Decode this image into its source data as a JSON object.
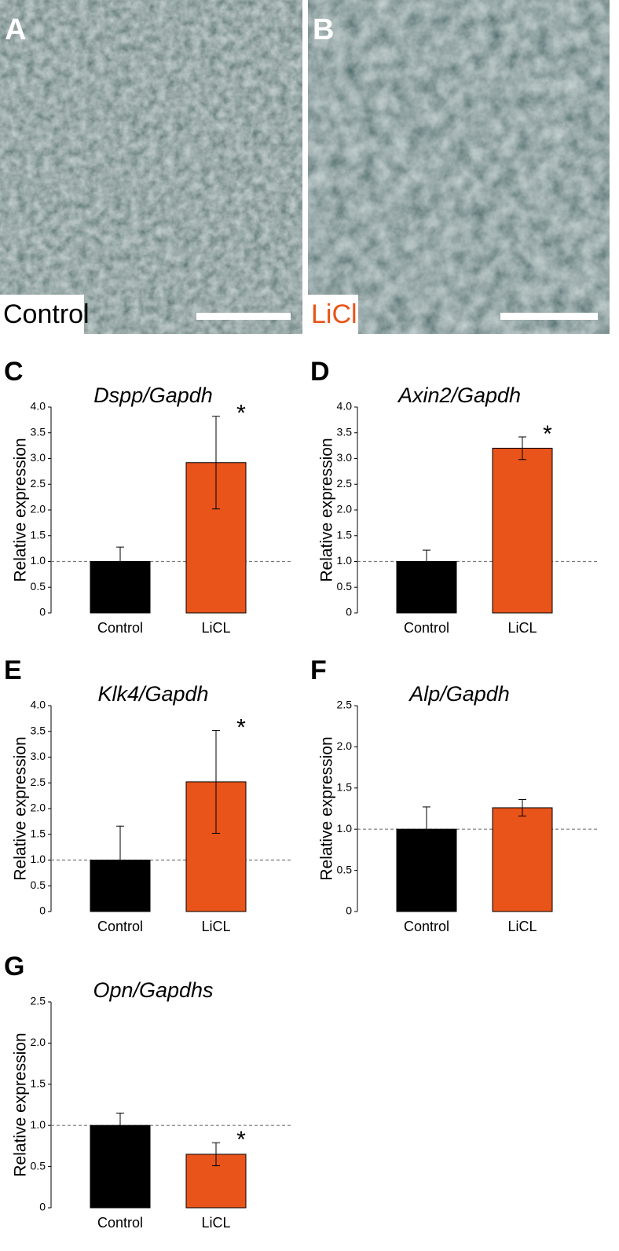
{
  "images": [
    {
      "label": "A",
      "caption": "Control",
      "caption_color": "#000000"
    },
    {
      "label": "B",
      "caption": "LiCl",
      "caption_color": "#e8541a"
    }
  ],
  "chart_data": [
    {
      "type": "bar",
      "panel": "C",
      "title": "Dspp/Gapdh",
      "y_label": "Relative expression",
      "categories": [
        "Control",
        "LiCL"
      ],
      "values": [
        1.0,
        2.92
      ],
      "errors": [
        0.28,
        0.9
      ],
      "colors": [
        "#000000",
        "#e8541a"
      ],
      "significance": [
        null,
        "*"
      ],
      "reference_line": 1,
      "ylim": [
        0,
        4
      ],
      "yticks": [
        0,
        {
          "value": 0.5,
          "label": "0.5"
        },
        {
          "value": 1,
          "label": "1.0"
        },
        {
          "value": 1.5,
          "label": "1.5"
        },
        {
          "value": 2,
          "label": "2.0"
        },
        {
          "value": 2.5,
          "label": "2.5"
        },
        {
          "value": 3,
          "label": "3.0"
        },
        {
          "value": 3.5,
          "label": "3.5"
        },
        {
          "value": 4,
          "label": "4.0"
        }
      ]
    },
    {
      "type": "bar",
      "panel": "D",
      "title": "Axin2/Gapdh",
      "y_label": "Relative expression",
      "categories": [
        "Control",
        "LiCL"
      ],
      "values": [
        1.0,
        3.2
      ],
      "errors": [
        0.22,
        0.22
      ],
      "colors": [
        "#000000",
        "#e8541a"
      ],
      "significance": [
        null,
        "*"
      ],
      "reference_line": 1,
      "ylim": [
        0,
        4
      ],
      "yticks": [
        0,
        {
          "value": 0.5,
          "label": "0.5"
        },
        {
          "value": 1,
          "label": "1.0"
        },
        {
          "value": 1.5,
          "label": "1.5"
        },
        {
          "value": 2,
          "label": "2.0"
        },
        {
          "value": 2.5,
          "label": "2.5"
        },
        {
          "value": 3,
          "label": "3.0"
        },
        {
          "value": 3.5,
          "label": "3.5"
        },
        {
          "value": 4,
          "label": "4.0"
        }
      ]
    },
    {
      "type": "bar",
      "panel": "E",
      "title": "Klk4/Gapdh",
      "y_label": "Relative expression",
      "categories": [
        "Control",
        "LiCL"
      ],
      "values": [
        1.0,
        2.52
      ],
      "errors": [
        0.66,
        1.0
      ],
      "colors": [
        "#000000",
        "#e8541a"
      ],
      "significance": [
        null,
        "*"
      ],
      "reference_line": 1,
      "ylim": [
        0,
        4
      ],
      "yticks": [
        0,
        {
          "value": 0.5,
          "label": "0.5"
        },
        {
          "value": 1,
          "label": "1.0"
        },
        {
          "value": 1.5,
          "label": "1.5"
        },
        {
          "value": 2,
          "label": "2.0"
        },
        {
          "value": 2.5,
          "label": "2.5"
        },
        {
          "value": 3,
          "label": "3.0"
        },
        {
          "value": 3.5,
          "label": "3.5"
        },
        {
          "value": 4,
          "label": "4.0"
        }
      ]
    },
    {
      "type": "bar",
      "panel": "F",
      "title": "Alp/Gapdh",
      "y_label": "Relative expression",
      "categories": [
        "Control",
        "LiCL"
      ],
      "values": [
        1.0,
        1.26
      ],
      "errors": [
        0.27,
        0.1
      ],
      "colors": [
        "#000000",
        "#e8541a"
      ],
      "significance": [
        null,
        null
      ],
      "reference_line": 1,
      "ylim": [
        0,
        2.5
      ],
      "yticks": [
        0,
        {
          "value": 0.5,
          "label": "0.5"
        },
        {
          "value": 1,
          "label": "1.0"
        },
        {
          "value": 1.5,
          "label": "1.5"
        },
        {
          "value": 2,
          "label": "2.0"
        },
        {
          "value": 2.5,
          "label": "2.5"
        }
      ]
    },
    {
      "type": "bar",
      "panel": "G",
      "title": "Opn/Gapdhs",
      "y_label": "Relative expression",
      "categories": [
        "Control",
        "LiCL"
      ],
      "values": [
        1.0,
        0.65
      ],
      "errors": [
        0.15,
        0.14
      ],
      "colors": [
        "#000000",
        "#e8541a"
      ],
      "significance": [
        null,
        "*"
      ],
      "reference_line": 1,
      "ylim": [
        0,
        2.5
      ],
      "yticks": [
        0,
        {
          "value": 0.5,
          "label": "0.5"
        },
        {
          "value": 1,
          "label": "1.0"
        },
        {
          "value": 1.5,
          "label": "1.5"
        },
        {
          "value": 2,
          "label": "2.0"
        },
        {
          "value": 2.5,
          "label": "2.5"
        }
      ]
    }
  ]
}
